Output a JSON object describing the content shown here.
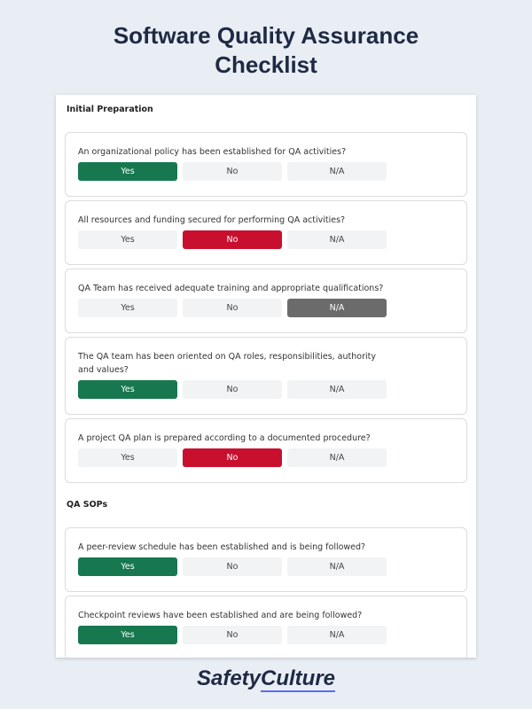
{
  "header": {
    "title": "Software Quality Assurance Checklist"
  },
  "option_colors": [
    "#17784f",
    "#c8102e",
    "#6b6b6b"
  ],
  "sections": [
    {
      "title": "Initial Preparation",
      "items": [
        {
          "question": "An organizational policy has been established for QA activities?",
          "options": [
            "Yes",
            "No",
            "N/A"
          ],
          "selected": 0
        },
        {
          "question": "All resources and funding secured for performing QA activities?",
          "options": [
            "Yes",
            "No",
            "N/A"
          ],
          "selected": 1
        },
        {
          "question": "QA Team has received adequate training and appropriate qualifications?",
          "options": [
            "Yes",
            "No",
            "N/A"
          ],
          "selected": 2
        },
        {
          "question": "The QA team has been oriented on QA roles, responsibilities, authority and values?",
          "options": [
            "Yes",
            "No",
            "N/A"
          ],
          "selected": 0
        },
        {
          "question": "A project QA plan is prepared according to a documented procedure?",
          "options": [
            "Yes",
            "No",
            "N/A"
          ],
          "selected": 1
        }
      ]
    },
    {
      "title": "QA SOPs",
      "items": [
        {
          "question": "A peer-review schedule has been established and is being followed?",
          "options": [
            "Yes",
            "No",
            "N/A"
          ],
          "selected": 0
        },
        {
          "question": "Checkpoint reviews have been established and are being followed?",
          "options": [
            "Yes",
            "No",
            "N/A"
          ],
          "selected": 0
        }
      ]
    }
  ],
  "footer": {
    "brand": [
      "Safety",
      "Culture"
    ]
  }
}
